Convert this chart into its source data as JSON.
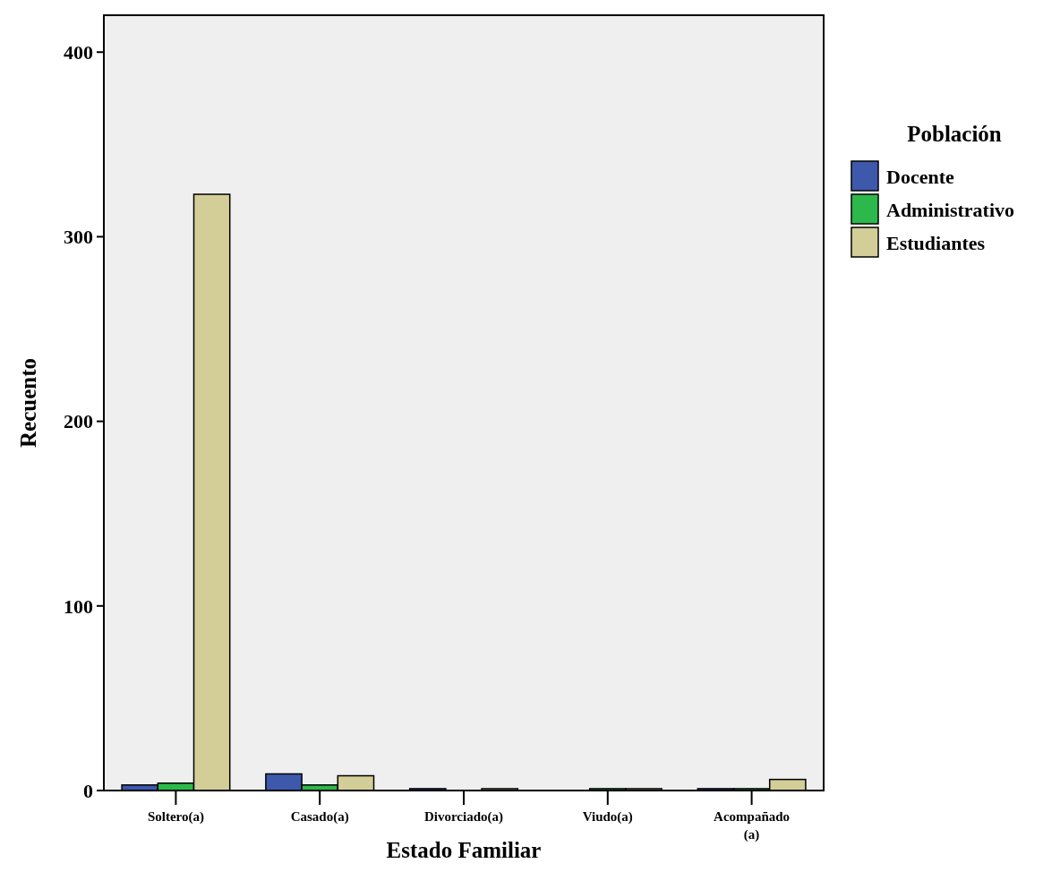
{
  "chart_data": {
    "type": "bar",
    "xlabel": "Estado Familiar",
    "ylabel": "Recuento",
    "legend_title": "Población",
    "legend": "top right",
    "categories": [
      "Soltero(a)",
      "Casado(a)",
      "Divorciado(a)",
      "Viudo(a)",
      "Acompañado (a)"
    ],
    "series": [
      {
        "name": "Docente",
        "color": "#3e58ac",
        "values": [
          3,
          9,
          1,
          0,
          1
        ]
      },
      {
        "name": "Administrativo",
        "color": "#2db84b",
        "values": [
          4,
          3,
          0,
          1,
          1
        ]
      },
      {
        "name": "Estudiantes",
        "color": "#d3ce97",
        "values": [
          323,
          8,
          1,
          1,
          6
        ]
      }
    ],
    "ylim": [
      0,
      420
    ],
    "yticks": [
      0,
      100,
      200,
      300,
      400
    ],
    "grid": false
  }
}
